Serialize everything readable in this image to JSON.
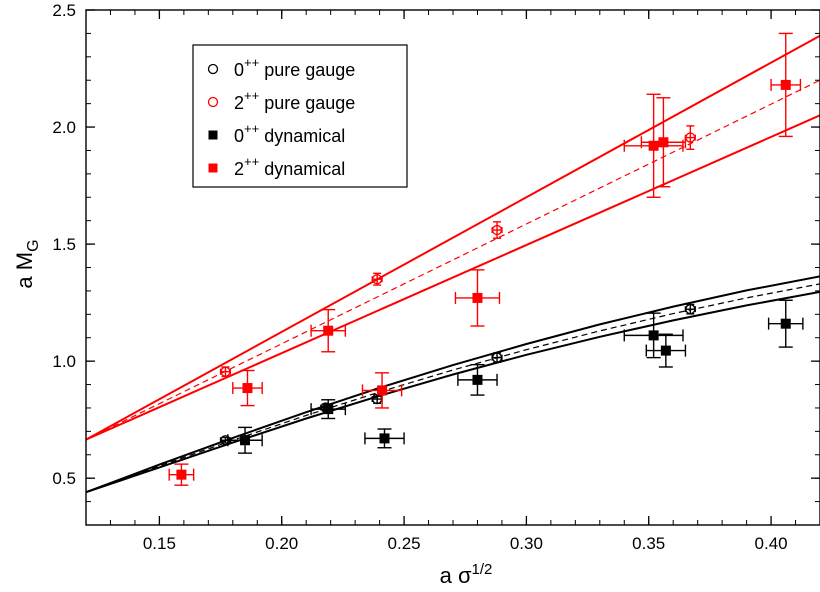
{
  "chart_data": {
    "type": "scatter",
    "xlabel": {
      "main": "a σ",
      "sup": "1/2"
    },
    "ylabel": {
      "main": "a M",
      "sub": "G"
    },
    "xlim": [
      0.12,
      0.42
    ],
    "ylim": [
      0.3,
      2.5
    ],
    "x_ticks": [
      "0.15",
      "0.20",
      "0.25",
      "0.30",
      "0.35",
      "0.40"
    ],
    "x_tick_values": [
      0.15,
      0.2,
      0.25,
      0.3,
      0.35,
      0.4
    ],
    "y_ticks": [
      "0.5",
      "1.0",
      "1.5",
      "2.0",
      "2.5"
    ],
    "y_tick_values": [
      0.5,
      1.0,
      1.5,
      2.0,
      2.5
    ],
    "grid": false,
    "legend_position": "top-left",
    "colors": {
      "black": "#000000",
      "red": "#ff0000"
    },
    "series": [
      {
        "name": "0++ pure gauge",
        "legend_main": "0",
        "legend_sup": "++",
        "legend_rest": " pure gauge",
        "marker": "open-circle",
        "color": "#000000",
        "points": [
          {
            "x": 0.177,
            "y": 0.662,
            "xerr": 0.002,
            "yerr": 0.012
          },
          {
            "x": 0.218,
            "y": 0.802,
            "xerr": 0.002,
            "yerr": 0.015
          },
          {
            "x": 0.239,
            "y": 0.838,
            "xerr": 0.002,
            "yerr": 0.018
          },
          {
            "x": 0.288,
            "y": 1.015,
            "xerr": 0.002,
            "yerr": 0.02
          },
          {
            "x": 0.367,
            "y": 1.222,
            "xerr": 0.002,
            "yerr": 0.02
          }
        ]
      },
      {
        "name": "2++ pure gauge",
        "legend_main": "2",
        "legend_sup": "++",
        "legend_rest": " pure gauge",
        "marker": "open-circle",
        "color": "#ff0000",
        "points": [
          {
            "x": 0.177,
            "y": 0.955,
            "xerr": 0.002,
            "yerr": 0.02
          },
          {
            "x": 0.239,
            "y": 1.35,
            "xerr": 0.002,
            "yerr": 0.025
          },
          {
            "x": 0.288,
            "y": 1.56,
            "xerr": 0.002,
            "yerr": 0.035
          },
          {
            "x": 0.367,
            "y": 1.955,
            "xerr": 0.002,
            "yerr": 0.05
          }
        ]
      },
      {
        "name": "0++ dynamical",
        "legend_main": "0",
        "legend_sup": "++",
        "legend_rest": " dynamical",
        "marker": "filled-square",
        "color": "#000000",
        "points": [
          {
            "x": 0.185,
            "y": 0.662,
            "xerr": 0.007,
            "yerr": 0.055
          },
          {
            "x": 0.219,
            "y": 0.795,
            "xerr": 0.007,
            "yerr": 0.04
          },
          {
            "x": 0.242,
            "y": 0.67,
            "xerr": 0.008,
            "yerr": 0.04
          },
          {
            "x": 0.28,
            "y": 0.92,
            "xerr": 0.008,
            "yerr": 0.065
          },
          {
            "x": 0.352,
            "y": 1.11,
            "xerr": 0.012,
            "yerr": 0.095
          },
          {
            "x": 0.357,
            "y": 1.045,
            "xerr": 0.008,
            "yerr": 0.07
          },
          {
            "x": 0.406,
            "y": 1.16,
            "xerr": 0.007,
            "yerr": 0.1
          }
        ]
      },
      {
        "name": "2++ dynamical",
        "legend_main": "2",
        "legend_sup": "++",
        "legend_rest": " dynamical",
        "marker": "filled-square",
        "color": "#ff0000",
        "points": [
          {
            "x": 0.159,
            "y": 0.515,
            "xerr": 0.005,
            "yerr": 0.045
          },
          {
            "x": 0.186,
            "y": 0.885,
            "xerr": 0.006,
            "yerr": 0.075
          },
          {
            "x": 0.219,
            "y": 1.13,
            "xerr": 0.007,
            "yerr": 0.09
          },
          {
            "x": 0.241,
            "y": 0.875,
            "xerr": 0.008,
            "yerr": 0.075
          },
          {
            "x": 0.28,
            "y": 1.27,
            "xerr": 0.009,
            "yerr": 0.12
          },
          {
            "x": 0.352,
            "y": 1.92,
            "xerr": 0.012,
            "yerr": 0.22
          },
          {
            "x": 0.356,
            "y": 1.935,
            "xerr": 0.009,
            "yerr": 0.19
          },
          {
            "x": 0.406,
            "y": 2.18,
            "xerr": 0.006,
            "yerr": 0.22
          }
        ]
      }
    ],
    "fit_curves": [
      {
        "color": "#ff0000",
        "style": "solid",
        "x": [
          0.12,
          0.42
        ],
        "y": [
          0.665,
          2.39
        ]
      },
      {
        "color": "#ff0000",
        "style": "dashed",
        "x": [
          0.12,
          0.42
        ],
        "y": [
          0.665,
          2.2
        ]
      },
      {
        "color": "#ff0000",
        "style": "solid",
        "x": [
          0.12,
          0.42
        ],
        "y": [
          0.665,
          2.05
        ]
      },
      {
        "color": "#000000",
        "style": "solid",
        "x": [
          0.12,
          0.15,
          0.18,
          0.21,
          0.24,
          0.27,
          0.3,
          0.33,
          0.36,
          0.39,
          0.42
        ],
        "y": [
          0.44,
          0.558,
          0.672,
          0.782,
          0.886,
          0.983,
          1.073,
          1.157,
          1.233,
          1.302,
          1.362
        ]
      },
      {
        "color": "#000000",
        "style": "dashed",
        "x": [
          0.12,
          0.15,
          0.18,
          0.21,
          0.24,
          0.27,
          0.3,
          0.33,
          0.36,
          0.39,
          0.42
        ],
        "y": [
          0.44,
          0.552,
          0.662,
          0.768,
          0.868,
          0.962,
          1.049,
          1.129,
          1.203,
          1.27,
          1.33
        ]
      },
      {
        "color": "#000000",
        "style": "solid",
        "x": [
          0.12,
          0.15,
          0.18,
          0.21,
          0.24,
          0.27,
          0.3,
          0.33,
          0.36,
          0.39,
          0.42
        ],
        "y": [
          0.44,
          0.546,
          0.652,
          0.755,
          0.852,
          0.943,
          1.027,
          1.104,
          1.174,
          1.238,
          1.296
        ]
      }
    ]
  }
}
